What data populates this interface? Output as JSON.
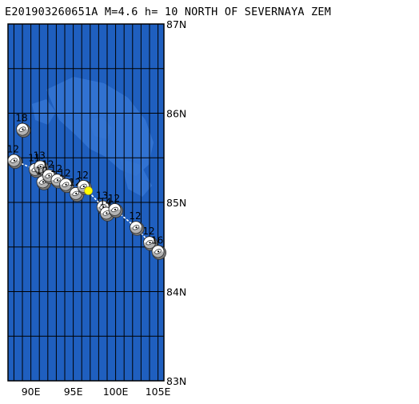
{
  "header": {
    "title": "E201903260651A M=4.6 h= 10 NORTH OF SEVERNAYA ZEM"
  },
  "map": {
    "lat_range": [
      83,
      87
    ],
    "lon_range": [
      87.3,
      105.7
    ],
    "ocean_color": "#1f5fbf",
    "land_shelf_color": "#3576d4",
    "grid_color": "#000000",
    "epicenter_color": "#ffff00",
    "lat_ticks": [
      {
        "value": 87,
        "label": "87N"
      },
      {
        "value": 86,
        "label": "86N"
      },
      {
        "value": 85,
        "label": "85N"
      },
      {
        "value": 84,
        "label": "84N"
      },
      {
        "value": 83,
        "label": "83N"
      }
    ],
    "lon_ticks": [
      {
        "value": 90,
        "label": "90E"
      },
      {
        "value": 95,
        "label": "95E"
      },
      {
        "value": 100,
        "label": "100E"
      },
      {
        "value": 105,
        "label": "105E"
      }
    ],
    "epicenter": {
      "lon": 96.8,
      "lat": 85.13
    },
    "events": [
      {
        "lon": 89.0,
        "lat": 85.82,
        "depth": "18"
      },
      {
        "lon": 88.0,
        "lat": 85.47,
        "depth": "12"
      },
      {
        "lon": 90.5,
        "lat": 85.37,
        "depth": "11"
      },
      {
        "lon": 91.1,
        "lat": 85.4,
        "depth": "13"
      },
      {
        "lon": 91.4,
        "lat": 85.23,
        "depth": "10"
      },
      {
        "lon": 92.1,
        "lat": 85.3,
        "depth": "12"
      },
      {
        "lon": 93.1,
        "lat": 85.25,
        "depth": "12"
      },
      {
        "lon": 94.1,
        "lat": 85.2,
        "depth": "12"
      },
      {
        "lon": 95.3,
        "lat": 85.1,
        "depth": "12"
      },
      {
        "lon": 96.2,
        "lat": 85.18,
        "depth": "12"
      },
      {
        "lon": 98.5,
        "lat": 84.95,
        "depth": "13"
      },
      {
        "lon": 98.9,
        "lat": 84.88,
        "depth": "14"
      },
      {
        "lon": 99.9,
        "lat": 84.92,
        "depth": "12"
      },
      {
        "lon": 102.4,
        "lat": 84.72,
        "depth": "12"
      },
      {
        "lon": 104.0,
        "lat": 84.55,
        "depth": "12"
      },
      {
        "lon": 105.0,
        "lat": 84.45,
        "depth": "16"
      }
    ]
  }
}
